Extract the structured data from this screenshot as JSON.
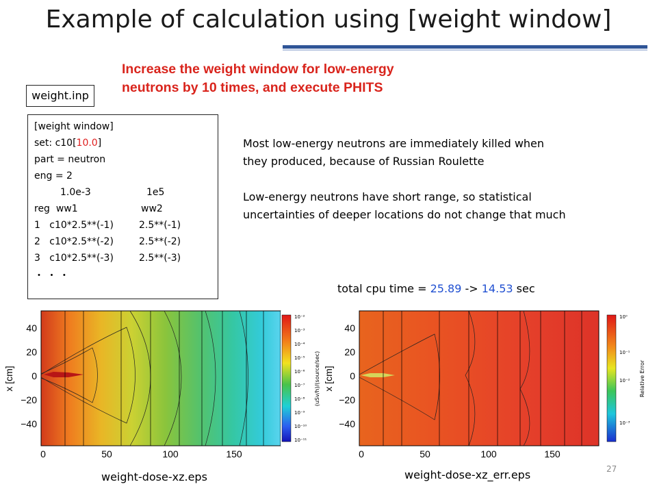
{
  "slide": {
    "title": "Example of calculation using [weight window]",
    "headline": [
      "Increase the weight window for low-energy",
      "neutrons by 10 times, and execute PHITS"
    ],
    "file_label": "weight.inp",
    "code": {
      "l1": "[weight window]",
      "l2_a": "set: c10[",
      "l2_b": "10.0",
      "l2_c": "]",
      "l3": "part = neutron",
      "l4": "eng = 2",
      "l5_a": "1.0e-3",
      "l5_b": "1e5",
      "l6_a": "reg  ww1",
      "l6_b": "ww2",
      "r1_a": "1   c10*2.5**(-1)",
      "r1_b": "2.5**(-1)",
      "r2_a": "2   c10*2.5**(-2)",
      "r2_b": "2.5**(-2)",
      "r3_a": "3   c10*2.5**(-3)",
      "r3_b": "2.5**(-3)",
      "ellipsis": "・ ・ ・"
    },
    "notes": [
      "Most low-energy neutrons are immediately killed when",
      "they produced, because of Russian Roulette",
      "",
      "Low-energy neutrons have short range, so statistical",
      "uncertainties of deeper locations do not change that much"
    ],
    "cpu": {
      "prefix": "total cpu time = ",
      "before": "25.89",
      "arrow": " -> ",
      "after": "14.53",
      "unit": " sec"
    },
    "page_number": "27"
  },
  "plots": [
    {
      "caption": "weight-dose-xz.eps",
      "ylabel": "x [cm]",
      "colorbar_label": "(uSv/h)/(source/sec)",
      "yticks": [
        "40",
        "20",
        "0",
        "−20",
        "−40"
      ],
      "xticks": [
        "0",
        "50",
        "100",
        "150"
      ],
      "colorbar_ticks": [
        "10⁻²",
        "10⁻³",
        "10⁻⁴",
        "10⁻⁵",
        "10⁻⁶",
        "10⁻⁷",
        "10⁻⁸",
        "10⁻⁹",
        "10⁻¹⁰",
        "10⁻¹¹"
      ]
    },
    {
      "caption": "weight-dose-xz_err.eps",
      "ylabel": "x [cm]",
      "colorbar_label": "Relative Error",
      "yticks": [
        "40",
        "20",
        "0",
        "−20",
        "−40"
      ],
      "xticks": [
        "0",
        "50",
        "100",
        "150"
      ],
      "colorbar_ticks": [
        "10⁰",
        "10⁻¹",
        "10⁻²",
        "10⁻³"
      ]
    }
  ],
  "colors": {
    "title_rule": "#2f5597",
    "headline": "#d9241c",
    "code_highlight": "#e02020",
    "cpu_values": "#1f4fd1"
  }
}
